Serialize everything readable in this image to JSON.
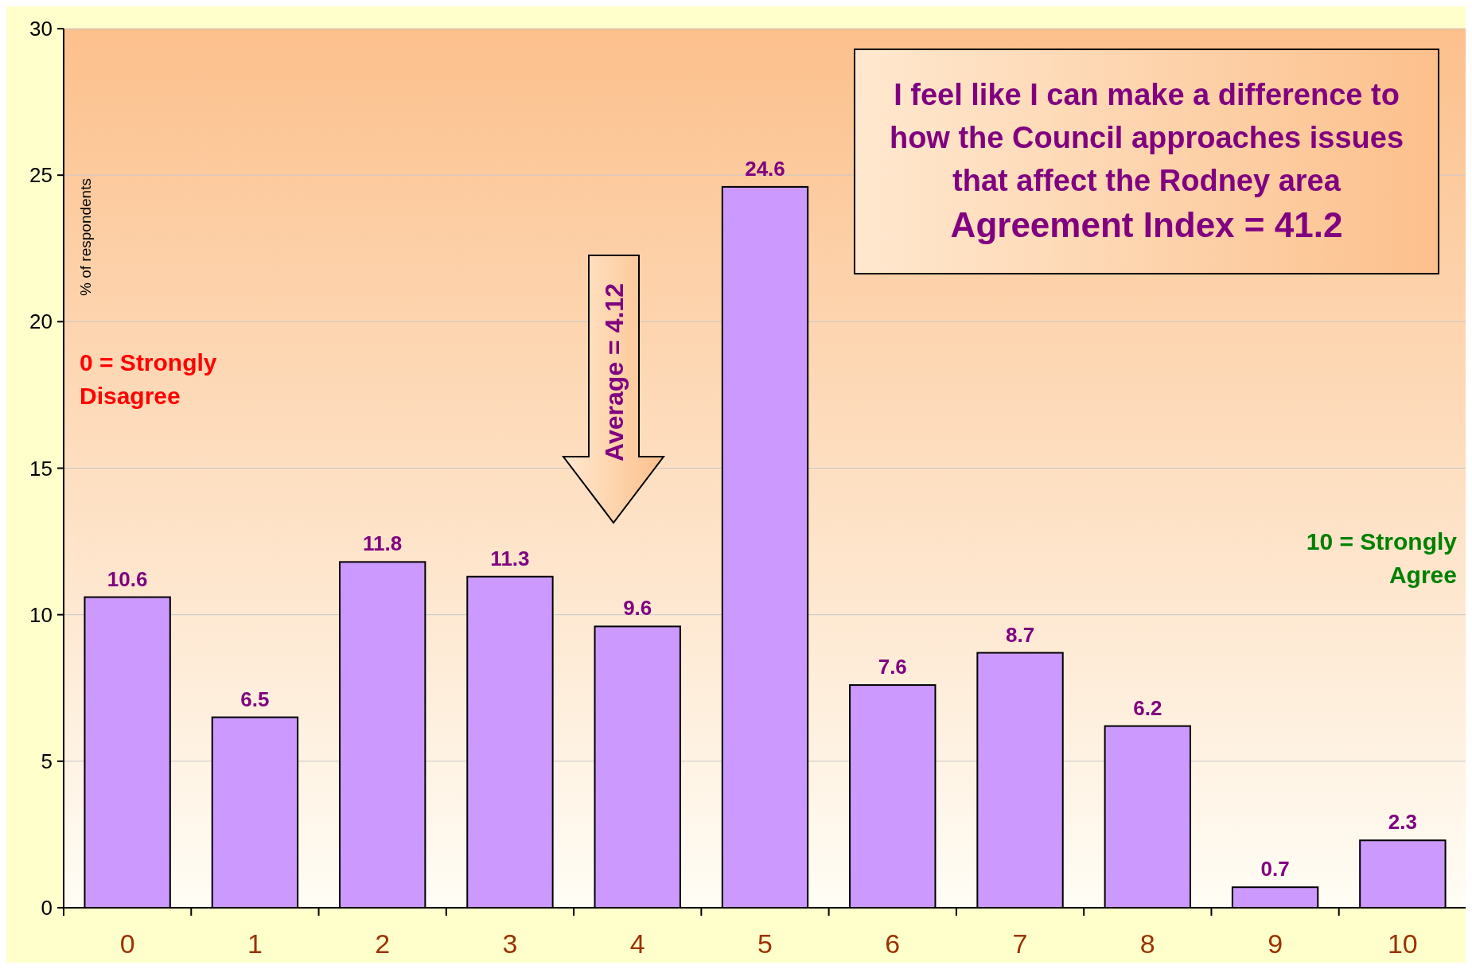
{
  "chart_data": {
    "type": "bar",
    "title": "I feel like I can make a difference to\nhow the Council approaches issues\nthat affect the Rodney area",
    "subtitle": "Agreement Index = 41.2",
    "ylabel": "% of respondents",
    "categories": [
      "0",
      "1",
      "2",
      "3",
      "4",
      "5",
      "6",
      "7",
      "8",
      "9",
      "10"
    ],
    "values": [
      10.6,
      6.5,
      11.8,
      11.3,
      9.6,
      24.6,
      7.6,
      8.7,
      6.2,
      0.7,
      2.3
    ],
    "color": "#cc99ff",
    "ylim": [
      0,
      30
    ],
    "yticks": [
      0,
      5,
      10,
      15,
      20,
      25,
      30
    ],
    "grid": "y",
    "data_labels": true,
    "annotations": [
      "Average = 4.12",
      "0 = Strongly\nDisagree",
      "10 = Strongly\nAgree"
    ]
  }
}
